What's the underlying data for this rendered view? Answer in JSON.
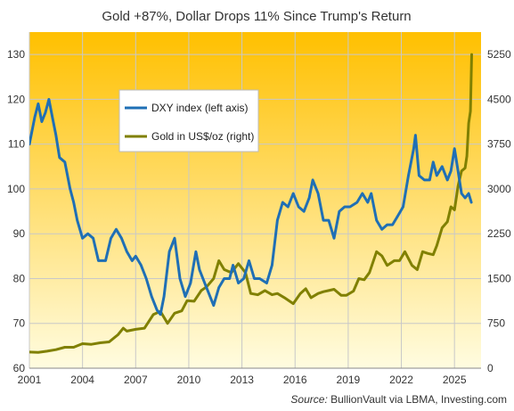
{
  "chart_data": {
    "type": "line",
    "title": "Gold +87%, Dollar Drops 11% Since Trump's Return",
    "source_prefix": "Source:",
    "source_text": "BullionVault via LBMA, Investing.com",
    "plot_gradient": [
      "#FFC000",
      "#FFFCE0"
    ],
    "grid": true,
    "legend_position": "upper-left-center",
    "x_ticks": [
      "2001",
      "2004",
      "2007",
      "2010",
      "2013",
      "2016",
      "2019",
      "2022",
      "2025"
    ],
    "y_left": {
      "min": 60,
      "max": 135,
      "ticks": [
        "60",
        "70",
        "80",
        "90",
        "100",
        "110",
        "120",
        "130"
      ]
    },
    "y_right": {
      "min": 0,
      "max": 5625,
      "ticks": [
        "0",
        "750",
        "1500",
        "2250",
        "3000",
        "3750",
        "4500",
        "5250"
      ]
    },
    "series": [
      {
        "name": "DXY index (left axis)",
        "axis": "left",
        "color": "#1F6FB5",
        "points": [
          [
            2001.0,
            110
          ],
          [
            2001.3,
            116
          ],
          [
            2001.5,
            119
          ],
          [
            2001.7,
            115
          ],
          [
            2001.9,
            117
          ],
          [
            2002.1,
            120
          ],
          [
            2002.3,
            116
          ],
          [
            2002.5,
            112
          ],
          [
            2002.7,
            107
          ],
          [
            2003.0,
            106
          ],
          [
            2003.3,
            100
          ],
          [
            2003.5,
            97
          ],
          [
            2003.7,
            93
          ],
          [
            2004.0,
            89
          ],
          [
            2004.3,
            90
          ],
          [
            2004.6,
            89
          ],
          [
            2004.9,
            84
          ],
          [
            2005.3,
            84
          ],
          [
            2005.6,
            89
          ],
          [
            2005.9,
            91
          ],
          [
            2006.2,
            89
          ],
          [
            2006.5,
            86
          ],
          [
            2006.8,
            84
          ],
          [
            2007.0,
            85
          ],
          [
            2007.3,
            83
          ],
          [
            2007.6,
            80
          ],
          [
            2007.9,
            76
          ],
          [
            2008.2,
            73
          ],
          [
            2008.4,
            72
          ],
          [
            2008.6,
            76
          ],
          [
            2008.9,
            86
          ],
          [
            2009.2,
            89
          ],
          [
            2009.5,
            80
          ],
          [
            2009.8,
            76
          ],
          [
            2010.1,
            79
          ],
          [
            2010.4,
            86
          ],
          [
            2010.6,
            82
          ],
          [
            2010.9,
            79
          ],
          [
            2011.2,
            76
          ],
          [
            2011.4,
            74
          ],
          [
            2011.7,
            78
          ],
          [
            2012.0,
            80
          ],
          [
            2012.3,
            80
          ],
          [
            2012.5,
            83
          ],
          [
            2012.8,
            79
          ],
          [
            2013.1,
            80
          ],
          [
            2013.4,
            84
          ],
          [
            2013.7,
            80
          ],
          [
            2014.0,
            80
          ],
          [
            2014.4,
            79
          ],
          [
            2014.7,
            83
          ],
          [
            2015.0,
            93
          ],
          [
            2015.3,
            97
          ],
          [
            2015.6,
            96
          ],
          [
            2015.9,
            99
          ],
          [
            2016.2,
            96
          ],
          [
            2016.5,
            95
          ],
          [
            2016.8,
            98
          ],
          [
            2017.0,
            102
          ],
          [
            2017.3,
            99
          ],
          [
            2017.6,
            93
          ],
          [
            2017.9,
            93
          ],
          [
            2018.2,
            89
          ],
          [
            2018.5,
            95
          ],
          [
            2018.8,
            96
          ],
          [
            2019.1,
            96
          ],
          [
            2019.5,
            97
          ],
          [
            2019.8,
            99
          ],
          [
            2020.1,
            97
          ],
          [
            2020.3,
            99
          ],
          [
            2020.6,
            93
          ],
          [
            2020.9,
            91
          ],
          [
            2021.2,
            92
          ],
          [
            2021.5,
            92
          ],
          [
            2021.8,
            94
          ],
          [
            2022.1,
            96
          ],
          [
            2022.4,
            103
          ],
          [
            2022.7,
            109
          ],
          [
            2022.8,
            112
          ],
          [
            2023.0,
            103
          ],
          [
            2023.3,
            102
          ],
          [
            2023.6,
            102
          ],
          [
            2023.8,
            106
          ],
          [
            2024.0,
            103
          ],
          [
            2024.3,
            105
          ],
          [
            2024.6,
            102
          ],
          [
            2024.8,
            104
          ],
          [
            2025.0,
            109
          ],
          [
            2025.2,
            104
          ],
          [
            2025.4,
            99
          ],
          [
            2025.6,
            98
          ],
          [
            2025.8,
            99
          ],
          [
            2025.95,
            97
          ]
        ]
      },
      {
        "name": "Gold in US$/oz (right)",
        "axis": "right",
        "color": "#808000",
        "points": [
          [
            2001.0,
            270
          ],
          [
            2001.5,
            265
          ],
          [
            2002.0,
            285
          ],
          [
            2002.5,
            310
          ],
          [
            2003.0,
            350
          ],
          [
            2003.5,
            350
          ],
          [
            2004.0,
            410
          ],
          [
            2004.5,
            400
          ],
          [
            2005.0,
            425
          ],
          [
            2005.5,
            440
          ],
          [
            2006.0,
            560
          ],
          [
            2006.3,
            670
          ],
          [
            2006.5,
            620
          ],
          [
            2007.0,
            650
          ],
          [
            2007.5,
            670
          ],
          [
            2008.0,
            900
          ],
          [
            2008.4,
            950
          ],
          [
            2008.8,
            750
          ],
          [
            2009.2,
            920
          ],
          [
            2009.6,
            960
          ],
          [
            2009.9,
            1130
          ],
          [
            2010.3,
            1120
          ],
          [
            2010.7,
            1300
          ],
          [
            2011.0,
            1360
          ],
          [
            2011.4,
            1500
          ],
          [
            2011.7,
            1800
          ],
          [
            2012.0,
            1650
          ],
          [
            2012.4,
            1600
          ],
          [
            2012.8,
            1750
          ],
          [
            2013.2,
            1600
          ],
          [
            2013.5,
            1250
          ],
          [
            2013.9,
            1230
          ],
          [
            2014.3,
            1300
          ],
          [
            2014.7,
            1230
          ],
          [
            2015.0,
            1250
          ],
          [
            2015.4,
            1180
          ],
          [
            2015.9,
            1080
          ],
          [
            2016.3,
            1250
          ],
          [
            2016.6,
            1330
          ],
          [
            2016.9,
            1180
          ],
          [
            2017.3,
            1250
          ],
          [
            2017.6,
            1280
          ],
          [
            2017.9,
            1300
          ],
          [
            2018.2,
            1320
          ],
          [
            2018.6,
            1220
          ],
          [
            2018.9,
            1220
          ],
          [
            2019.3,
            1290
          ],
          [
            2019.6,
            1500
          ],
          [
            2019.9,
            1480
          ],
          [
            2020.2,
            1600
          ],
          [
            2020.6,
            1950
          ],
          [
            2020.9,
            1880
          ],
          [
            2021.2,
            1720
          ],
          [
            2021.6,
            1800
          ],
          [
            2021.9,
            1800
          ],
          [
            2022.2,
            1950
          ],
          [
            2022.6,
            1720
          ],
          [
            2022.9,
            1650
          ],
          [
            2023.2,
            1950
          ],
          [
            2023.5,
            1920
          ],
          [
            2023.8,
            1900
          ],
          [
            2024.0,
            2050
          ],
          [
            2024.3,
            2350
          ],
          [
            2024.6,
            2450
          ],
          [
            2024.8,
            2700
          ],
          [
            2025.0,
            2650
          ],
          [
            2025.2,
            3050
          ],
          [
            2025.4,
            3300
          ],
          [
            2025.6,
            3350
          ],
          [
            2025.7,
            3550
          ],
          [
            2025.8,
            4100
          ],
          [
            2025.9,
            4300
          ],
          [
            2025.97,
            5250
          ]
        ]
      }
    ]
  }
}
